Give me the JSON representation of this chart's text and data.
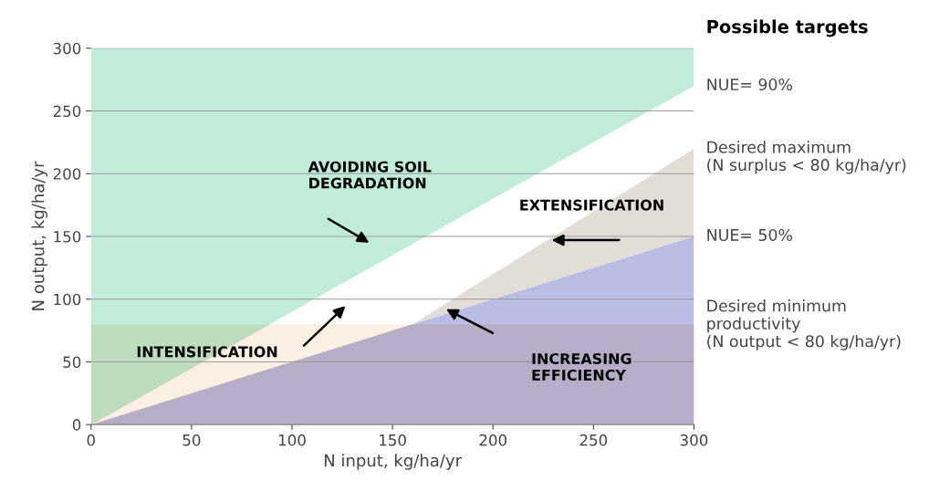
{
  "chart_data": {
    "type": "area",
    "stacked": true,
    "xlabel": "N input, kg/ha/yr",
    "ylabel": "N output, kg/ha/yr",
    "xlim": [
      0,
      300
    ],
    "ylim": [
      0,
      300
    ],
    "xticks": [
      0,
      50,
      100,
      150,
      200,
      250,
      300
    ],
    "yticks": [
      0,
      50,
      100,
      150,
      200,
      250,
      300
    ],
    "grid": "y",
    "x": [
      0,
      160,
      300
    ],
    "series": [
      {
        "color": "#a9aede",
        "values": [
          0,
          80,
          150
        ]
      },
      {
        "color": "#ddd6d0",
        "values": [
          0,
          0,
          70
        ]
      },
      {
        "color": "#ffffff",
        "values": [
          0,
          64,
          50
        ]
      },
      {
        "color": "#b3e8d2",
        "values": [
          300,
          156,
          30
        ]
      }
    ],
    "bands": [
      {
        "axis": "y",
        "from": 0,
        "to": 80,
        "color": "#eea866"
      }
    ],
    "annotations": [
      "Possible targets",
      "NUE= 90%",
      "Desired maximum\n(N surplus < 80 kg/ha/yr)",
      "NUE= 50%",
      "Desired minimum\nproductivity\n(N output < 80 kg/ha/yr)",
      "AVOIDING SOIL\nDEGRADATION",
      "INTENSIFICATION",
      "EXTENSIFICATION",
      "INCREASING\nEFFICIENCY"
    ]
  }
}
